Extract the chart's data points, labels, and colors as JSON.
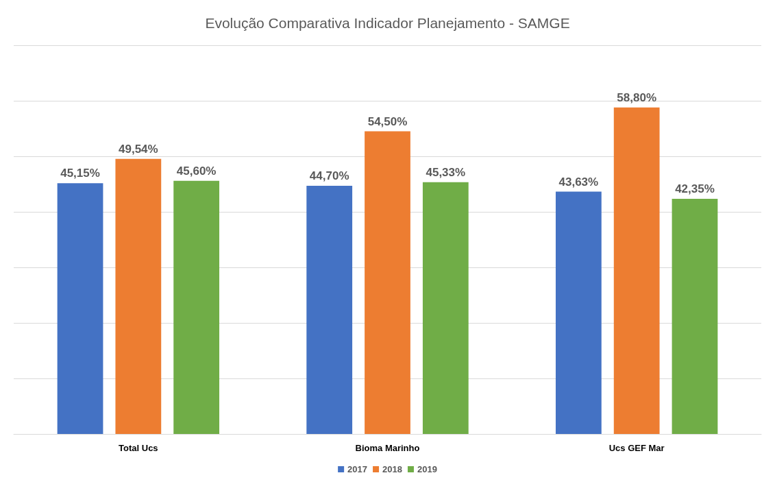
{
  "chart_data": {
    "type": "bar",
    "title": "Evolução Comparativa Indicador Planejamento - SAMGE",
    "categories": [
      "Total Ucs",
      "Bioma Marinho",
      "Ucs GEF Mar"
    ],
    "series": [
      {
        "name": "2017",
        "color": "#4472c4",
        "values": [
          45.15,
          44.7,
          43.63
        ],
        "value_labels": [
          "45,15%",
          "44,70%",
          "43,63%"
        ]
      },
      {
        "name": "2018",
        "color": "#ed7d31",
        "values": [
          49.54,
          54.5,
          58.8
        ],
        "value_labels": [
          "49,54%",
          "54,50%",
          "58,80%"
        ]
      },
      {
        "name": "2019",
        "color": "#70ad47",
        "values": [
          45.6,
          45.33,
          42.35
        ],
        "value_labels": [
          "45,60%",
          "45,33%",
          "42,35%"
        ]
      }
    ],
    "ylim": [
      0,
      70
    ],
    "yticks": [
      {
        "value": 0,
        "label": null
      },
      {
        "value": 10,
        "label": null
      },
      {
        "value": 20,
        "label": null
      },
      {
        "value": 30,
        "label": null
      },
      {
        "value": 40,
        "label": null
      },
      {
        "value": 50,
        "label": null
      },
      {
        "value": 60,
        "label": null
      },
      {
        "value": 70,
        "label": null
      }
    ],
    "grid": "y",
    "legend": "bottom",
    "tick_labels": "x"
  }
}
